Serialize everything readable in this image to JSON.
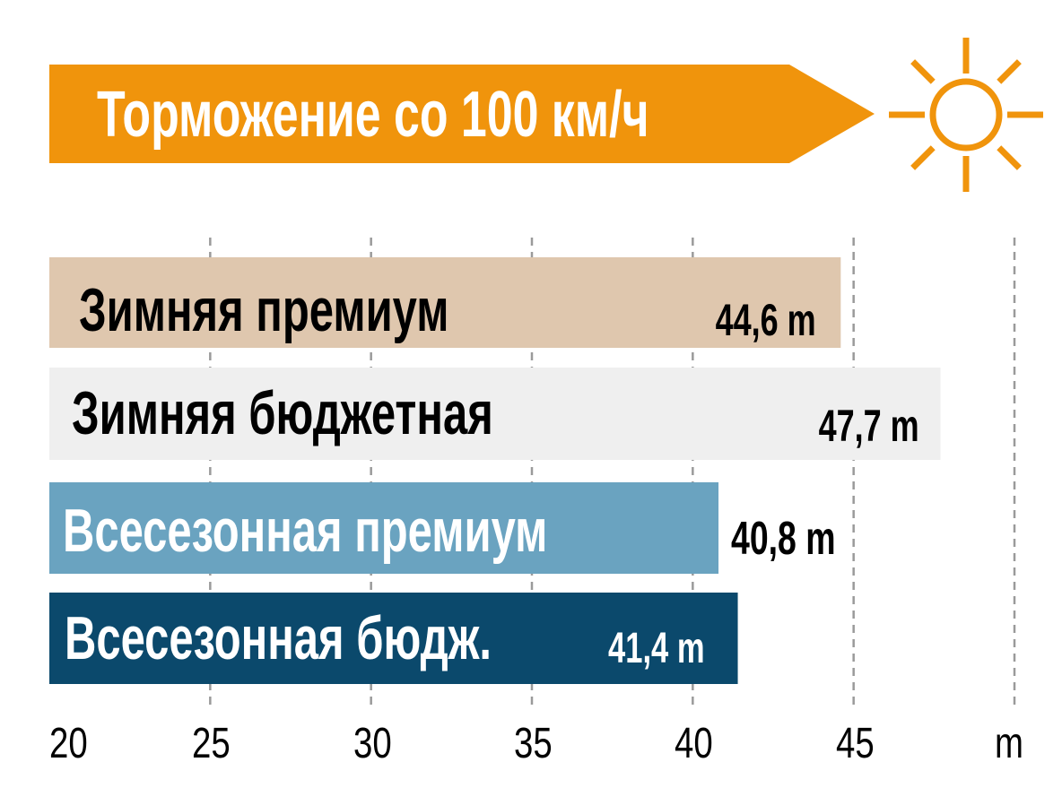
{
  "colors": {
    "accent": "#f0940c",
    "bars": [
      "#dfc7ae",
      "#efefef",
      "#6aa3c0",
      "#0b496c"
    ],
    "grid": "#9a9a9a"
  },
  "icon": "sun-icon",
  "chart_data": {
    "type": "bar",
    "orientation": "horizontal",
    "title": "Торможение со 100 км/ч",
    "categories": [
      "Зимняя премиум",
      "Зимняя бюджетная",
      "Всесезонная премиум",
      "Всесезонная бюдж."
    ],
    "values": [
      44.6,
      47.7,
      40.8,
      41.4
    ],
    "value_labels": [
      "44,6 m",
      "47,7 m",
      "40,8 m",
      "41,4 m"
    ],
    "xlim": [
      20,
      50
    ],
    "xticks": [
      20,
      25,
      30,
      35,
      40,
      45
    ],
    "tick_labels": [
      "20",
      "25",
      "30",
      "35",
      "40",
      "45"
    ],
    "xlabel": "m",
    "grid": true
  }
}
